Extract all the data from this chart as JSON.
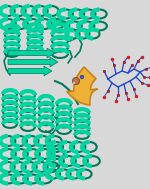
{
  "bg_color": "#d8d8d8",
  "protein_color": "#00d4a0",
  "protein_mid": "#00b888",
  "protein_dark": "#007a5a",
  "arrow_color": "#f0b030",
  "arrow_edge": "#c88010",
  "ligand_color": "#2244cc",
  "atom_color": "#cc2222",
  "iron_color": "#c07850",
  "iron_edge": "#8a5030",
  "iron_blue": "#4466cc",
  "figsize": [
    1.5,
    1.89
  ],
  "dpi": 100,
  "xlim": [
    0,
    150
  ],
  "ylim": [
    0,
    189
  ]
}
